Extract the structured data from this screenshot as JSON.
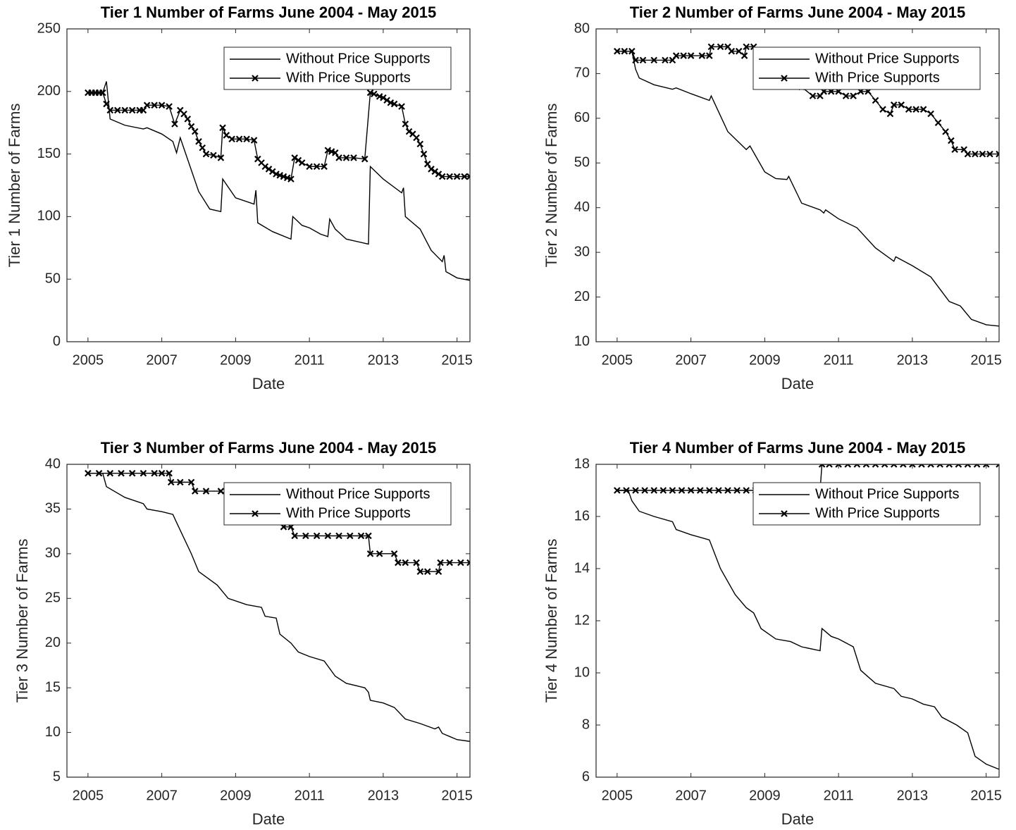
{
  "chart_data": [
    {
      "type": "line",
      "title": "Tier 1 Number of Farms June 2004 - May 2015",
      "xlabel": "Date",
      "ylabel": "Tier 1 Number of Farms",
      "xlim": [
        2004.43,
        2015.35
      ],
      "xticks": [
        2005,
        2007,
        2009,
        2011,
        2013,
        2015
      ],
      "ylim": [
        0,
        250
      ],
      "yticks": [
        0,
        50,
        100,
        150,
        200,
        250
      ],
      "legend": "upper right",
      "series": [
        {
          "name": "Without Price Supports",
          "color": "#000000",
          "x": [
            2005,
            2005.4,
            2005.5,
            2005.6,
            2006,
            2006.5,
            2006.6,
            2007,
            2007.3,
            2007.4,
            2007.5,
            2008,
            2008.3,
            2008.6,
            2008.65,
            2009,
            2009.5,
            2009.55,
            2009.6,
            2010,
            2010.5,
            2010.55,
            2010.8,
            2011,
            2011.3,
            2011.5,
            2011.55,
            2011.7,
            2012,
            2012.6,
            2012.65,
            2013,
            2013.5,
            2013.55,
            2013.6,
            2014,
            2014.3,
            2014.6,
            2014.65,
            2014.7,
            2015,
            2015.35
          ],
          "values": [
            199,
            199,
            208,
            178,
            173,
            170,
            171,
            166,
            160,
            151,
            163,
            120,
            106,
            104,
            130,
            115,
            110,
            121,
            95,
            88,
            82,
            100,
            93,
            91,
            86,
            84,
            98,
            90,
            82,
            78,
            140,
            130,
            119,
            123,
            100,
            90,
            73,
            64,
            69,
            56,
            51,
            49
          ]
        },
        {
          "name": "With Price Supports",
          "color": "#000000",
          "marker": "x",
          "x": [
            2005,
            2005.1,
            2005.2,
            2005.3,
            2005.4,
            2005.5,
            2005.6,
            2005.8,
            2006,
            2006.2,
            2006.4,
            2006.5,
            2006.6,
            2006.8,
            2007,
            2007.2,
            2007.35,
            2007.5,
            2007.6,
            2007.7,
            2007.8,
            2007.9,
            2008,
            2008.1,
            2008.2,
            2008.4,
            2008.6,
            2008.65,
            2008.75,
            2008.9,
            2009.1,
            2009.3,
            2009.5,
            2009.6,
            2009.7,
            2009.8,
            2009.9,
            2010,
            2010.1,
            2010.2,
            2010.3,
            2010.4,
            2010.5,
            2010.6,
            2010.7,
            2010.8,
            2011,
            2011.2,
            2011.4,
            2011.5,
            2011.6,
            2011.7,
            2011.8,
            2012,
            2012.2,
            2012.5,
            2012.65,
            2012.75,
            2012.9,
            2013,
            2013.1,
            2013.2,
            2013.3,
            2013.5,
            2013.6,
            2013.7,
            2013.8,
            2013.9,
            2014,
            2014.1,
            2014.2,
            2014.3,
            2014.4,
            2014.5,
            2014.6,
            2014.8,
            2015,
            2015.2,
            2015.35
          ],
          "values": [
            199,
            199,
            199,
            199,
            199,
            190,
            185,
            185,
            185,
            185,
            185,
            185,
            189,
            189,
            189,
            188,
            174,
            185,
            182,
            178,
            172,
            168,
            160,
            155,
            150,
            149,
            147,
            171,
            165,
            162,
            162,
            162,
            161,
            146,
            143,
            140,
            138,
            136,
            134,
            133,
            132,
            131,
            130,
            147,
            145,
            143,
            140,
            140,
            140,
            153,
            152,
            151,
            147,
            147,
            147,
            146,
            199,
            198,
            196,
            195,
            193,
            191,
            190,
            188,
            174,
            168,
            166,
            163,
            158,
            150,
            142,
            138,
            136,
            134,
            132,
            132,
            132,
            132,
            132
          ]
        }
      ]
    },
    {
      "type": "line",
      "title": "Tier 2 Number of Farms June 2004 - May 2015",
      "xlabel": "Date",
      "ylabel": "Tier 2 Number of Farms",
      "xlim": [
        2004.43,
        2015.35
      ],
      "xticks": [
        2005,
        2007,
        2009,
        2011,
        2013,
        2015
      ],
      "ylim": [
        10,
        80
      ],
      "yticks": [
        10,
        20,
        30,
        40,
        50,
        60,
        70,
        80
      ],
      "legend": "upper right",
      "series": [
        {
          "name": "Without Price Supports",
          "color": "#000000",
          "x": [
            2005,
            2005.4,
            2005.5,
            2005.6,
            2006,
            2006.5,
            2006.6,
            2007,
            2007.5,
            2007.55,
            2008,
            2008.5,
            2008.6,
            2009,
            2009.3,
            2009.6,
            2009.65,
            2010,
            2010.5,
            2010.6,
            2010.65,
            2011,
            2011.5,
            2012,
            2012.5,
            2012.55,
            2013,
            2013.5,
            2014,
            2014.3,
            2014.6,
            2015,
            2015.35
          ],
          "values": [
            75,
            75,
            71,
            69,
            67.5,
            66.5,
            66.8,
            65.5,
            64,
            65,
            57,
            53,
            53.8,
            48,
            46.5,
            46.3,
            47,
            41,
            39.5,
            38.8,
            39.5,
            37.5,
            35.5,
            31,
            28,
            29,
            27,
            24.5,
            19,
            18,
            15,
            13.8,
            13.5
          ]
        },
        {
          "name": "With Price Supports",
          "color": "#000000",
          "marker": "x",
          "x": [
            2005,
            2005.2,
            2005.4,
            2005.5,
            2005.7,
            2006,
            2006.3,
            2006.5,
            2006.6,
            2006.8,
            2007,
            2007.3,
            2007.5,
            2007.55,
            2007.8,
            2008,
            2008.1,
            2008.3,
            2008.45,
            2008.5,
            2008.7,
            2009,
            2009.5,
            2010,
            2010.3,
            2010.5,
            2010.6,
            2010.8,
            2011,
            2011.2,
            2011.4,
            2011.6,
            2011.8,
            2012,
            2012.2,
            2012.4,
            2012.5,
            2012.7,
            2012.9,
            2013.1,
            2013.3,
            2013.5,
            2013.7,
            2013.9,
            2014.05,
            2014.15,
            2014.4,
            2014.5,
            2014.7,
            2014.9,
            2015.1,
            2015.35
          ],
          "values": [
            75,
            75,
            75,
            73,
            73,
            73,
            73,
            73,
            74,
            74,
            74,
            74,
            74,
            76,
            76,
            76,
            75,
            75,
            74,
            76,
            76,
            72,
            70,
            67,
            65,
            65,
            66,
            66,
            66,
            65,
            65,
            66,
            66,
            64,
            62,
            61,
            63,
            63,
            62,
            62,
            62,
            61,
            59,
            57,
            55,
            53,
            53,
            52,
            52,
            52,
            52,
            52
          ]
        }
      ]
    },
    {
      "type": "line",
      "title": "Tier 3 Number of Farms June 2004 - May 2015",
      "xlabel": "Date",
      "ylabel": "Tier 3 Number of Farms",
      "xlim": [
        2004.43,
        2015.35
      ],
      "xticks": [
        2005,
        2007,
        2009,
        2011,
        2013,
        2015
      ],
      "ylim": [
        5,
        40
      ],
      "yticks": [
        5,
        10,
        15,
        20,
        25,
        30,
        35,
        40
      ],
      "legend": "upper right",
      "series": [
        {
          "name": "Without Price Supports",
          "color": "#000000",
          "x": [
            2005,
            2005.4,
            2005.5,
            2006,
            2006.5,
            2006.6,
            2007,
            2007.3,
            2007.4,
            2007.8,
            2008,
            2008.5,
            2008.8,
            2009.3,
            2009.7,
            2009.8,
            2010.1,
            2010.2,
            2010.5,
            2010.7,
            2011,
            2011.4,
            2011.7,
            2012,
            2012.5,
            2012.6,
            2012.65,
            2013,
            2013.3,
            2013.6,
            2014,
            2014.4,
            2014.5,
            2014.6,
            2015,
            2015.35
          ],
          "values": [
            39,
            39,
            37.5,
            36.3,
            35.6,
            35,
            34.7,
            34.4,
            33.5,
            30,
            28,
            26.5,
            25,
            24.3,
            24,
            23,
            22.8,
            21,
            20,
            19,
            18.5,
            18,
            16.3,
            15.5,
            15,
            14.5,
            13.6,
            13.3,
            12.8,
            11.5,
            11,
            10.4,
            10.6,
            9.9,
            9.2,
            9
          ]
        },
        {
          "name": "With Price Supports",
          "color": "#000000",
          "marker": "x",
          "x": [
            2005,
            2005.3,
            2005.6,
            2005.9,
            2006.2,
            2006.5,
            2006.8,
            2007.0,
            2007.2,
            2007.25,
            2007.5,
            2007.8,
            2007.9,
            2008.2,
            2008.6,
            2009,
            2009.5,
            2010,
            2010.3,
            2010.5,
            2010.6,
            2010.9,
            2011.2,
            2011.5,
            2011.8,
            2012.1,
            2012.4,
            2012.6,
            2012.65,
            2012.9,
            2013.3,
            2013.4,
            2013.6,
            2013.9,
            2014,
            2014.2,
            2014.5,
            2014.55,
            2014.8,
            2015.1,
            2015.35
          ],
          "values": [
            39,
            39,
            39,
            39,
            39,
            39,
            39,
            39,
            39,
            38,
            38,
            38,
            37,
            37,
            37,
            36,
            35,
            34,
            33,
            33,
            32,
            32,
            32,
            32,
            32,
            32,
            32,
            32,
            30,
            30,
            30,
            29,
            29,
            29,
            28,
            28,
            28,
            29,
            29,
            29,
            29
          ]
        }
      ]
    },
    {
      "type": "line",
      "title": "Tier 4 Number of Farms June 2004 - May 2015",
      "xlabel": "Date",
      "ylabel": "Tier 4 Number of Farms",
      "xlim": [
        2004.43,
        2015.35
      ],
      "xticks": [
        2005,
        2007,
        2009,
        2011,
        2013,
        2015
      ],
      "ylim": [
        6,
        18
      ],
      "yticks": [
        6,
        8,
        10,
        12,
        14,
        16,
        18
      ],
      "legend": "upper right",
      "series": [
        {
          "name": "Without Price Supports",
          "color": "#000000",
          "x": [
            2005,
            2005.3,
            2005.4,
            2005.6,
            2006,
            2006.5,
            2006.6,
            2007,
            2007.5,
            2007.8,
            2008.2,
            2008.5,
            2008.7,
            2008.9,
            2009.3,
            2009.7,
            2010,
            2010.5,
            2010.55,
            2010.8,
            2011,
            2011.4,
            2011.6,
            2012,
            2012.5,
            2012.7,
            2013,
            2013.3,
            2013.6,
            2013.8,
            2014.2,
            2014.5,
            2014.7,
            2015,
            2015.35
          ],
          "values": [
            17,
            17,
            16.6,
            16.2,
            16,
            15.8,
            15.5,
            15.3,
            15.1,
            14,
            13,
            12.5,
            12.3,
            11.7,
            11.3,
            11.2,
            11,
            10.85,
            11.7,
            11.4,
            11.3,
            11,
            10.1,
            9.6,
            9.4,
            9.1,
            9,
            8.8,
            8.7,
            8.3,
            8,
            7.7,
            6.8,
            6.5,
            6.3
          ]
        },
        {
          "name": "With Price Supports",
          "color": "#000000",
          "marker": "x",
          "x": [
            2005,
            2005.25,
            2005.5,
            2005.75,
            2006,
            2006.25,
            2006.5,
            2006.75,
            2007,
            2007.25,
            2007.5,
            2007.75,
            2008,
            2008.25,
            2008.5,
            2008.75,
            2009,
            2009.25,
            2009.5,
            2009.75,
            2010,
            2010.25,
            2010.5,
            2010.55,
            2010.75,
            2011,
            2011.25,
            2011.5,
            2011.75,
            2012,
            2012.25,
            2012.5,
            2012.75,
            2013,
            2013.25,
            2013.5,
            2013.75,
            2014,
            2014.25,
            2014.5,
            2014.75,
            2015,
            2015.35
          ],
          "values": [
            17,
            17,
            17,
            17,
            17,
            17,
            17,
            17,
            17,
            17,
            17,
            17,
            17,
            17,
            17,
            17,
            17,
            17,
            17,
            17,
            17,
            17,
            17,
            18,
            18,
            18,
            18,
            18,
            18,
            18,
            18,
            18,
            18,
            18,
            18,
            18,
            18,
            18,
            18,
            18,
            18,
            18,
            18
          ]
        }
      ]
    }
  ]
}
